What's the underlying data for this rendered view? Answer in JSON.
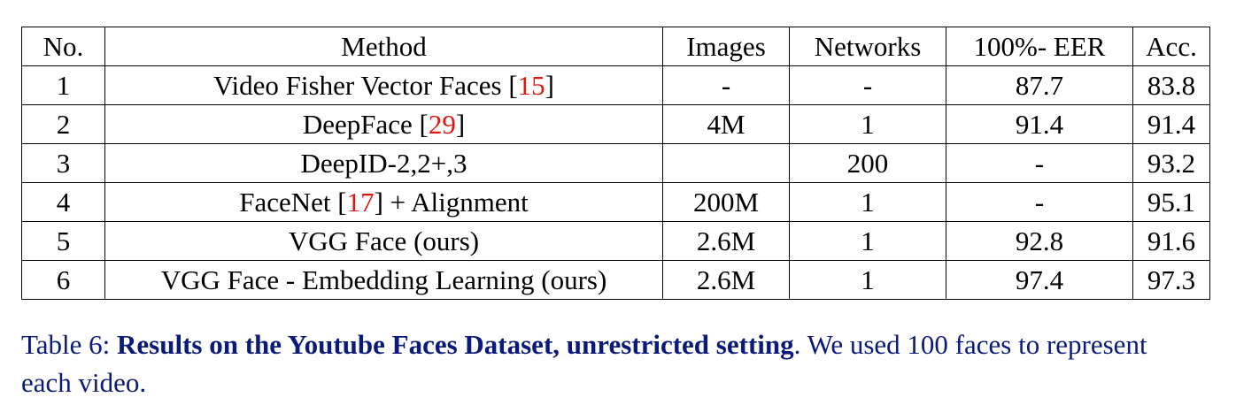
{
  "table": {
    "headers": [
      "No.",
      "Method",
      "Images",
      "Networks",
      "100%- EER",
      "Acc."
    ],
    "rows": [
      {
        "no": "1",
        "method": "Video Fisher Vector Faces [",
        "ref": "15",
        "method_after": "]",
        "images": "-",
        "networks": "-",
        "eer": "87.7",
        "acc": "83.8"
      },
      {
        "no": "2",
        "method": "DeepFace [",
        "ref": "29",
        "method_after": "]",
        "images": "4M",
        "networks": "1",
        "eer": "91.4",
        "acc": "91.4"
      },
      {
        "no": "3",
        "method": "DeepID-2,2+,3",
        "ref": "",
        "method_after": "",
        "images": "",
        "networks": "200",
        "eer": "-",
        "acc": "93.2"
      },
      {
        "no": "4",
        "method": "FaceNet [",
        "ref": "17",
        "method_after": "] + Alignment",
        "images": "200M",
        "networks": "1",
        "eer": "-",
        "acc": "95.1"
      },
      {
        "no": "5",
        "method": "VGG Face (ours)",
        "ref": "",
        "method_after": "",
        "images": "2.6M",
        "networks": "1",
        "eer": "92.8",
        "acc": "91.6"
      },
      {
        "no": "6",
        "method": "VGG Face - Embedding Learning (ours)",
        "ref": "",
        "method_after": "",
        "images": "2.6M",
        "networks": "1",
        "eer": "97.4",
        "acc": "97.3"
      }
    ]
  },
  "caption": {
    "label": "Table 6: ",
    "bold": "Results on the Youtube Faces Dataset, unrestricted setting",
    "rest": ". We used 100 faces to represent each video."
  },
  "colors": {
    "caption": "#0a1a7a",
    "reference": "#e8140f"
  }
}
